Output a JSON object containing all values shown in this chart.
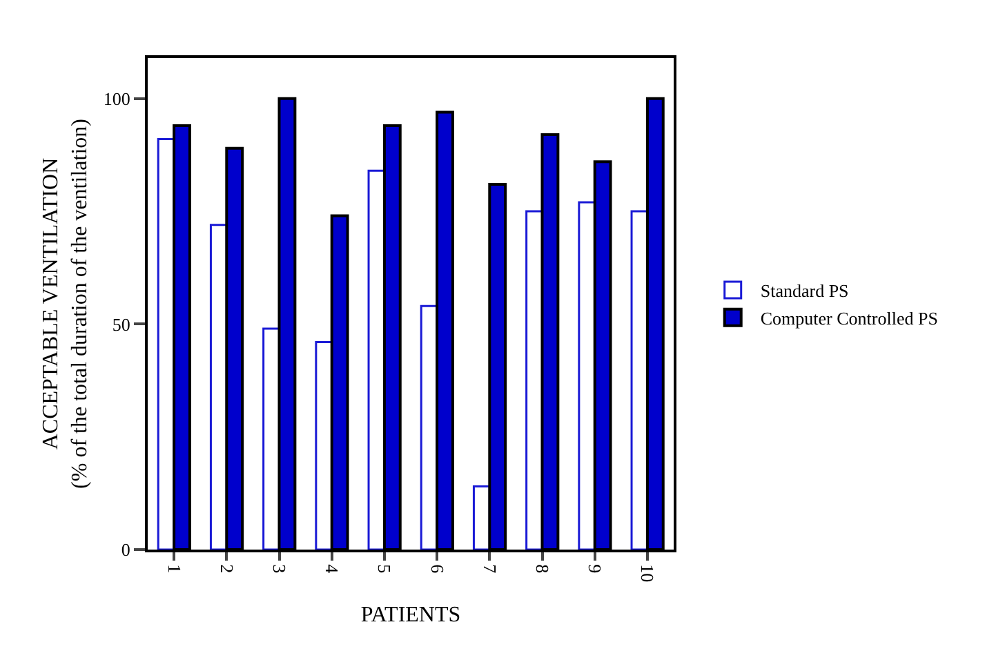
{
  "chart_data": {
    "type": "bar",
    "xlabel": "PATIENTS",
    "ylabel": "ACCEPTABLE VENTILATION\n(% of the total duration of the ventilation)",
    "categories": [
      "1",
      "2",
      "3",
      "4",
      "5",
      "6",
      "7",
      "8",
      "9",
      "10"
    ],
    "series": [
      {
        "name": "Standard PS",
        "color": "#ffffff",
        "values": [
          91,
          72,
          49,
          46,
          84,
          54,
          14,
          75,
          77,
          75
        ]
      },
      {
        "name": "Computer Controlled PS",
        "color": "#0000cc",
        "values": [
          94,
          89,
          100,
          74,
          94,
          97,
          81,
          92,
          86,
          100
        ]
      }
    ],
    "ylim": [
      0,
      109
    ],
    "yticks": [
      0,
      50,
      100
    ],
    "grid": false,
    "legend": "right"
  }
}
